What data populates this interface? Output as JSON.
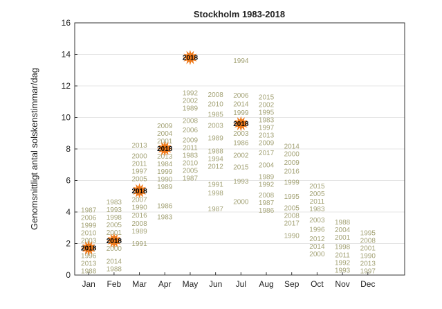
{
  "chart_data": {
    "type": "scatter",
    "title": "Stockholm 1983-2018",
    "xlabel": "",
    "ylabel": "Genomsnittligt antal solskenstimmar/dag",
    "ylim": [
      0,
      16
    ],
    "yticks": [
      0,
      2,
      4,
      6,
      8,
      10,
      12,
      14,
      16
    ],
    "categories": [
      "Jan",
      "Feb",
      "Mar",
      "Apr",
      "May",
      "Jun",
      "Jul",
      "Aug",
      "Sep",
      "Oct",
      "Nov",
      "Dec"
    ],
    "grid": "horizontal",
    "highlight_year": "2018",
    "highlight_color": "#f07a1a",
    "label_color": "#a3a275",
    "series": [
      {
        "month": "Jan",
        "points": [
          [
            "1987",
            2.55
          ],
          [
            "2006",
            2.3
          ],
          [
            "1999",
            1.9
          ],
          [
            "2010",
            1.7
          ],
          [
            "2003",
            1.5
          ],
          [
            "1996",
            1.0
          ],
          [
            "2013",
            0.45
          ],
          [
            "1988",
            0.2
          ],
          [
            "2018",
            1.2
          ]
        ]
      },
      {
        "month": "Feb",
        "points": [
          [
            "1983",
            4.25
          ],
          [
            "1993",
            3.9
          ],
          [
            "1998",
            3.5
          ],
          [
            "2005",
            3.1
          ],
          [
            "2001",
            2.7
          ],
          [
            "2000",
            1.7
          ],
          [
            "2014",
            0.8
          ],
          [
            "1988",
            0.4
          ],
          [
            "2018",
            2.1
          ]
        ]
      },
      {
        "month": "Mar",
        "points": [
          [
            "2013",
            8.25
          ],
          [
            "2000",
            7.1
          ],
          [
            "2011",
            6.85
          ],
          [
            "1997",
            6.5
          ],
          [
            "2005",
            6.1
          ],
          [
            "2007",
            4.8
          ],
          [
            "1990",
            4.3
          ],
          [
            "2016",
            3.8
          ],
          [
            "2008",
            3.1
          ],
          [
            "1989",
            2.8
          ],
          [
            "1991",
            2.0
          ],
          [
            "2018",
            5.35
          ]
        ]
      },
      {
        "month": "Apr",
        "points": [
          [
            "2009",
            9.3
          ],
          [
            "2004",
            8.8
          ],
          [
            "2001",
            8.4
          ],
          [
            "2013",
            7.3
          ],
          [
            "1984",
            6.9
          ],
          [
            "1999",
            6.4
          ],
          [
            "1990",
            6.0
          ],
          [
            "1989",
            5.6
          ],
          [
            "1986",
            4.4
          ],
          [
            "1983",
            3.7
          ],
          [
            "2018",
            7.7
          ]
        ]
      },
      {
        "month": "May",
        "points": [
          [
            "1992",
            11.5
          ],
          [
            "2002",
            11.0
          ],
          [
            "1989",
            10.6
          ],
          [
            "2008",
            9.8
          ],
          [
            "2006",
            9.2
          ],
          [
            "2009",
            8.4
          ],
          [
            "2011",
            7.9
          ],
          [
            "1983",
            7.3
          ],
          [
            "2010",
            6.8
          ],
          [
            "2005",
            6.55
          ],
          [
            "1987",
            6.15
          ],
          [
            "2018",
            13.8
          ]
        ]
      },
      {
        "month": "Jun",
        "points": [
          [
            "2008",
            11.45
          ],
          [
            "2010",
            10.85
          ],
          [
            "1985",
            10.2
          ],
          [
            "2003",
            9.5
          ],
          [
            "1989",
            8.7
          ],
          [
            "1988",
            7.75
          ],
          [
            "1994",
            7.3
          ],
          [
            "2012",
            6.9
          ],
          [
            "1991",
            5.75
          ],
          [
            "1998",
            5.2
          ],
          [
            "1987",
            4.2
          ]
        ]
      },
      {
        "month": "Jul",
        "points": [
          [
            "1994",
            13.6
          ],
          [
            "2006",
            11.4
          ],
          [
            "2014",
            10.85
          ],
          [
            "1999",
            10.3
          ],
          [
            "2018",
            9.6
          ],
          [
            "2003",
            9.0
          ],
          [
            "1986",
            8.4
          ],
          [
            "2002",
            7.6
          ],
          [
            "2015",
            6.85
          ],
          [
            "1993",
            5.95
          ],
          [
            "2000",
            4.65
          ]
        ]
      },
      {
        "month": "Aug",
        "points": [
          [
            "2015",
            10.95
          ],
          [
            "2002",
            10.55
          ],
          [
            "1995",
            9.9
          ],
          [
            "1983",
            9.15
          ],
          [
            "1997",
            8.9
          ],
          [
            "2013",
            8.65
          ],
          [
            "2009",
            8.4
          ],
          [
            "2017",
            7.75
          ],
          [
            "2004",
            7.0
          ],
          [
            "1989",
            6.1
          ],
          [
            "1992",
            5.75
          ],
          [
            "2008",
            4.8
          ],
          [
            "1987",
            4.35
          ],
          [
            "1986",
            4.1
          ]
        ]
      },
      {
        "month": "Sep",
        "points": [
          [
            "2014",
            8.15
          ],
          [
            "2000",
            7.7
          ],
          [
            "2009",
            7.15
          ],
          [
            "2016",
            6.6
          ],
          [
            "1999",
            5.9
          ],
          [
            "1995",
            5.0
          ],
          [
            "2005",
            4.2
          ],
          [
            "2008",
            3.75
          ],
          [
            "2017",
            3.3
          ],
          [
            "1990",
            2.5
          ]
        ]
      },
      {
        "month": "Oct",
        "points": [
          [
            "2015",
            5.2
          ],
          [
            "2005",
            5.0
          ],
          [
            "2011",
            4.55
          ],
          [
            "1983",
            4.2
          ],
          [
            "2003",
            3.5
          ],
          [
            "1996",
            2.9
          ],
          [
            "2012",
            1.7
          ],
          [
            "2014",
            1.5
          ],
          [
            "2000",
            1.35
          ]
        ]
      },
      {
        "month": "Nov",
        "points": [
          [
            "1988",
            3.1
          ],
          [
            "2004",
            2.8
          ],
          [
            "2001",
            2.4
          ],
          [
            "1998",
            1.8
          ],
          [
            "2011",
            1.2
          ],
          [
            "1992",
            0.6
          ],
          [
            "1993",
            0.3
          ]
        ]
      },
      {
        "month": "Dec",
        "points": [
          [
            "1995",
            2.35
          ],
          [
            "2008",
            1.9
          ],
          [
            "2001",
            1.4
          ],
          [
            "1990",
            0.9
          ],
          [
            "2013",
            0.6
          ],
          [
            "1997",
            0.25
          ]
        ]
      }
    ]
  }
}
